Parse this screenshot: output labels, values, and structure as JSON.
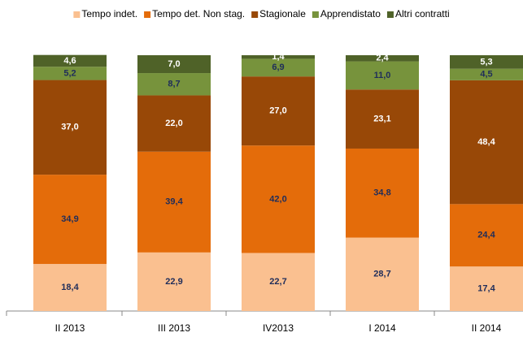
{
  "chart_data": {
    "type": "stacked_bar",
    "categories": [
      "II 2013",
      "III 2013",
      "IV2013",
      "I 2014",
      "II 2014"
    ],
    "ylim": [
      0,
      100
    ],
    "legend": "top",
    "series": [
      {
        "name": "Tempo indet.",
        "color": "#fac090",
        "label_color": "#1f2d5a",
        "values": [
          18.4,
          22.9,
          22.7,
          28.7,
          17.4
        ],
        "value_labels": [
          "18,4",
          "22,9",
          "22,7",
          "28,7",
          "17,4"
        ]
      },
      {
        "name": "Tempo det. Non stag.",
        "color": "#e46c0a",
        "label_color": "#1f2d5a",
        "values": [
          34.9,
          39.4,
          42.0,
          34.8,
          24.4
        ],
        "value_labels": [
          "34,9",
          "39,4",
          "42,0",
          "34,8",
          "24,4"
        ]
      },
      {
        "name": "Stagionale",
        "color": "#984807",
        "label_color": "#ffffff",
        "values": [
          37.0,
          22.0,
          27.0,
          23.1,
          48.4
        ],
        "value_labels": [
          "37,0",
          "22,0",
          "27,0",
          "23,1",
          "48,4"
        ]
      },
      {
        "name": "Apprendistato",
        "color": "#77933c",
        "label_color": "#1f2d5a",
        "values": [
          5.2,
          8.7,
          6.9,
          11.0,
          4.5
        ],
        "value_labels": [
          "5,2",
          "8,7",
          "6,9",
          "11,0",
          "4,5"
        ]
      },
      {
        "name": "Altri contratti",
        "color": "#4f6228",
        "label_color": "#ffffff",
        "values": [
          4.6,
          7.0,
          1.4,
          2.4,
          5.3
        ],
        "value_labels": [
          "4,6",
          "7,0",
          "1,4",
          "2,4",
          "5,3"
        ]
      }
    ]
  }
}
